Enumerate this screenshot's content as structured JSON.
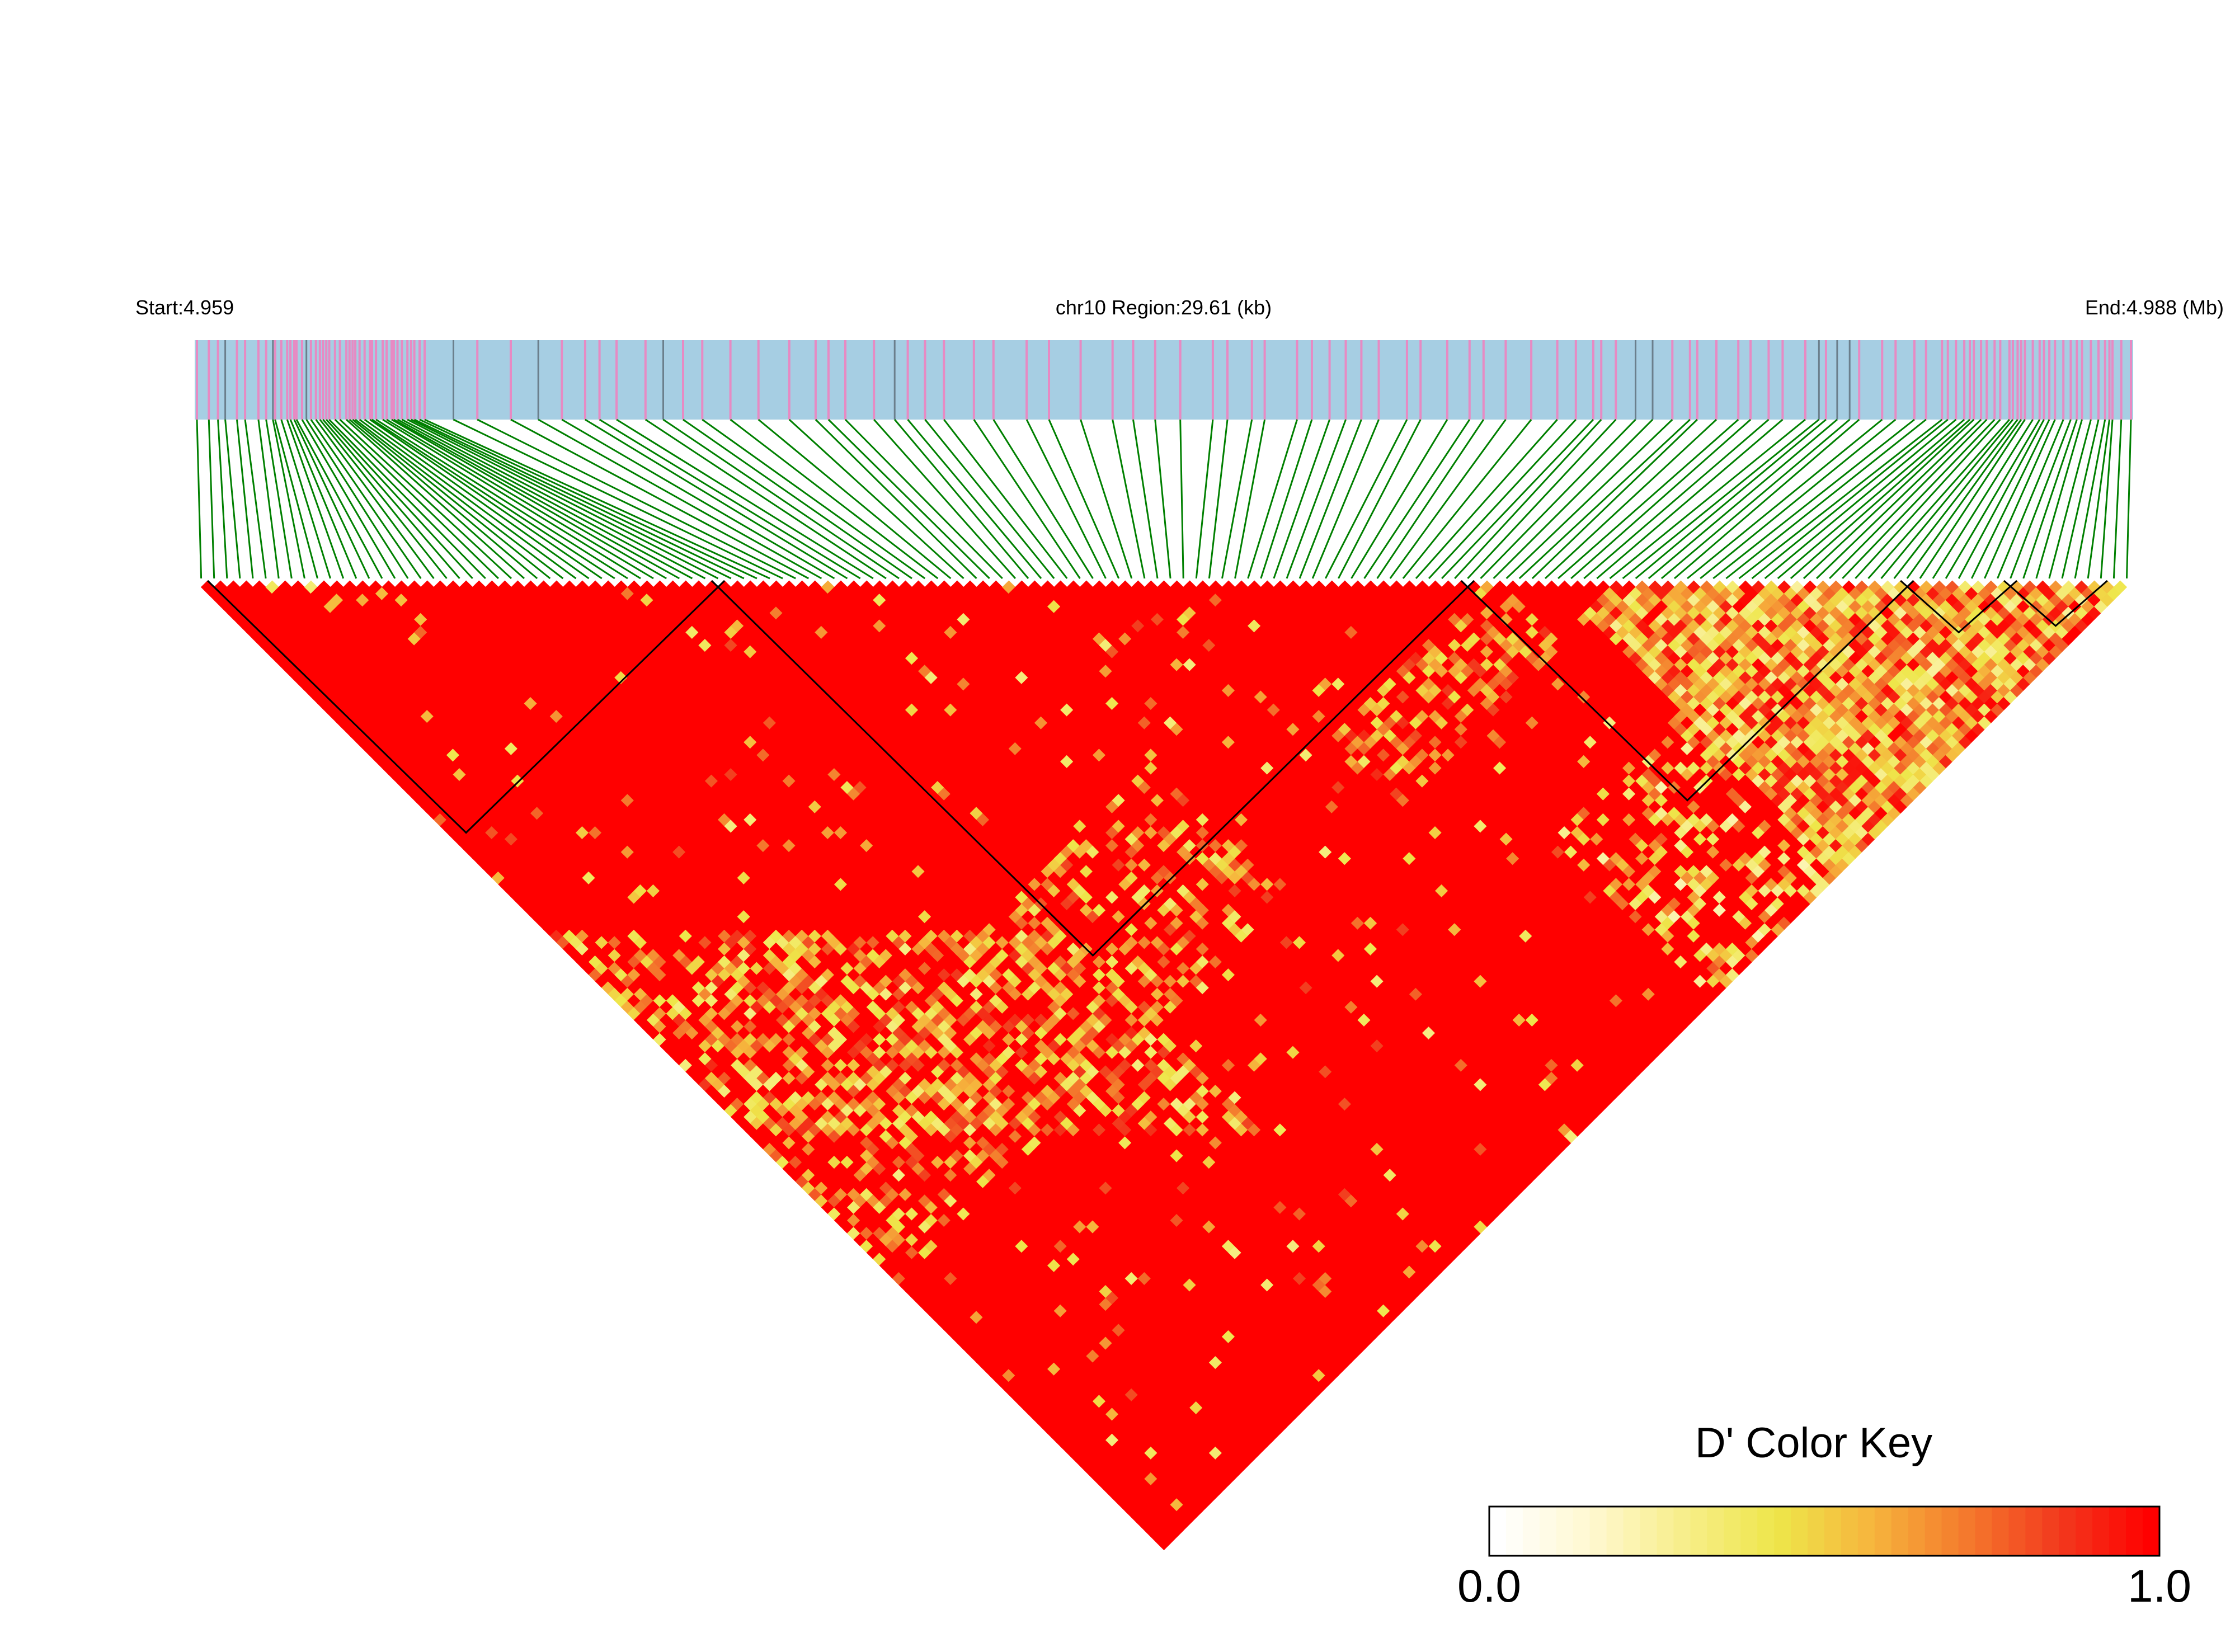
{
  "chart_data": {
    "type": "heatmap",
    "subtype": "linkage-disequilibrium triangle",
    "start_label": "Start:4.959",
    "region_label": "chr10 Region:29.61 (kb)",
    "end_label": "End:4.988 (Mb)",
    "chromosome": "chr10",
    "region_start_mb": 4.959,
    "region_end_mb": 4.988,
    "region_length_kb": 29.61,
    "snp_count": 150,
    "measure": "D'",
    "value_range": [
      0.0,
      1.0
    ],
    "color_key": {
      "title": "D' Color Key",
      "min_label": "0.0",
      "max_label": "1.0",
      "gradient": [
        "#FFFFFF",
        "#FFF8D0",
        "#F7EE8A",
        "#EEE64A",
        "#F6B53D",
        "#F47B2D",
        "#F23A1E",
        "#FF0000"
      ]
    },
    "matrix_summary": {
      "dominant_value": 1.0,
      "low_value_regions": [
        {
          "description": "right block near SNPs 105-150",
          "approx_value": 0.3
        },
        {
          "description": "bottom-left diagonal band",
          "approx_value": 0.5
        }
      ]
    },
    "colors": {
      "track_background": "#A6CEE3",
      "snp_tick": "#E78AC3",
      "snp_tick_dark": "#6B7F8C",
      "connector_lines": "#008000",
      "high_ld": "#FF0000",
      "block_outline": "#000000"
    }
  }
}
